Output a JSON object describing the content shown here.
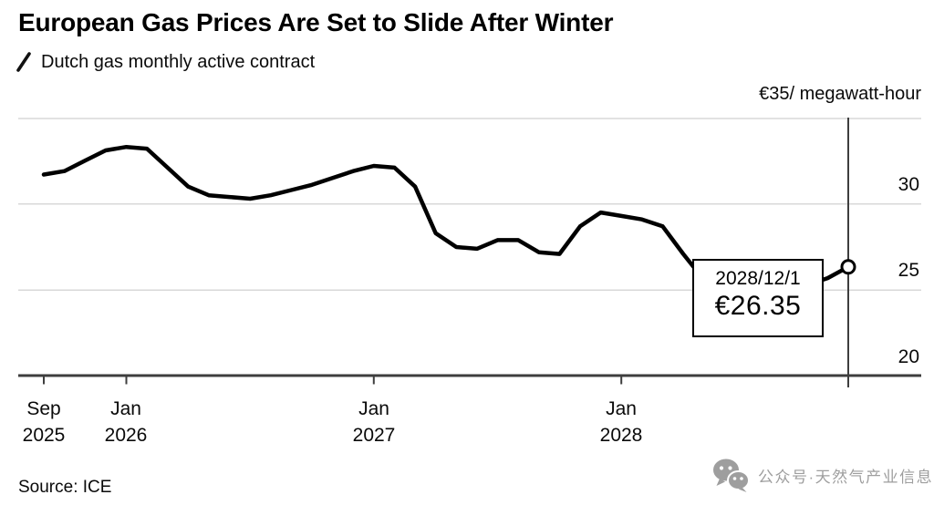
{
  "header": {
    "title": "European Gas Prices Are Set to Slide After Winter",
    "legend_label": "Dutch gas monthly active contract",
    "unit_label": "€35/ megawatt-hour"
  },
  "tooltip": {
    "date": "2028/12/1",
    "price": "€26.35"
  },
  "footer": {
    "source": "Source: ICE",
    "watermark_text": "公众号·天然气产业信息"
  },
  "colors": {
    "line": "#000000",
    "gridline": "#d8d8d8",
    "axis": "#3e3e3e",
    "cursor": "#3e3e3e",
    "watermark": "#9e9e9e",
    "background": "#ffffff"
  },
  "chart_data": {
    "type": "line",
    "title": "European Gas Prices Are Set to Slide After Winter",
    "xlabel": "",
    "ylabel": "€/ megawatt-hour",
    "ylim": [
      20,
      35
    ],
    "grid": "horizontal",
    "legend_position": "top-left",
    "series": [
      {
        "name": "Dutch gas monthly active contract",
        "x": [
          "2025-09",
          "2025-10",
          "2025-11",
          "2025-12",
          "2026-01",
          "2026-02",
          "2026-03",
          "2026-04",
          "2026-05",
          "2026-06",
          "2026-07",
          "2026-08",
          "2026-09",
          "2026-10",
          "2026-11",
          "2026-12",
          "2027-01",
          "2027-02",
          "2027-03",
          "2027-04",
          "2027-05",
          "2027-06",
          "2027-07",
          "2027-08",
          "2027-09",
          "2027-10",
          "2027-11",
          "2027-12",
          "2028-01",
          "2028-02",
          "2028-03",
          "2028-04",
          "2028-05",
          "2028-06",
          "2028-07",
          "2028-08",
          "2028-09",
          "2028-10",
          "2028-11",
          "2028-12"
        ],
        "values": [
          31.7,
          31.9,
          32.5,
          33.1,
          33.3,
          33.2,
          32.1,
          31.0,
          30.5,
          30.4,
          30.3,
          30.5,
          30.8,
          31.1,
          31.5,
          31.9,
          32.2,
          32.1,
          31.0,
          28.3,
          27.5,
          27.4,
          27.9,
          27.9,
          27.2,
          27.1,
          28.7,
          29.5,
          29.3,
          29.1,
          28.7,
          27.1,
          25.6,
          25.2,
          25.0,
          25.0,
          25.1,
          25.3,
          25.7,
          26.35
        ]
      }
    ],
    "y_gridline_values": [
      35,
      30,
      25
    ],
    "y_tick_labels": [
      {
        "value": 30,
        "label": "30"
      },
      {
        "value": 25,
        "label": "25"
      },
      {
        "value": 20,
        "label": "20"
      }
    ],
    "x_ticks": [
      {
        "index": 0,
        "line1": "Sep",
        "line2": "2025"
      },
      {
        "index": 4,
        "line1": "Jan",
        "line2": "2026"
      },
      {
        "index": 16,
        "line1": "Jan",
        "line2": "2027"
      },
      {
        "index": 28,
        "line1": "Jan",
        "line2": "2028"
      }
    ],
    "cursor": {
      "index": 39,
      "date_label": "2028/12/1",
      "value_label": "€26.35",
      "value": 26.35
    }
  }
}
